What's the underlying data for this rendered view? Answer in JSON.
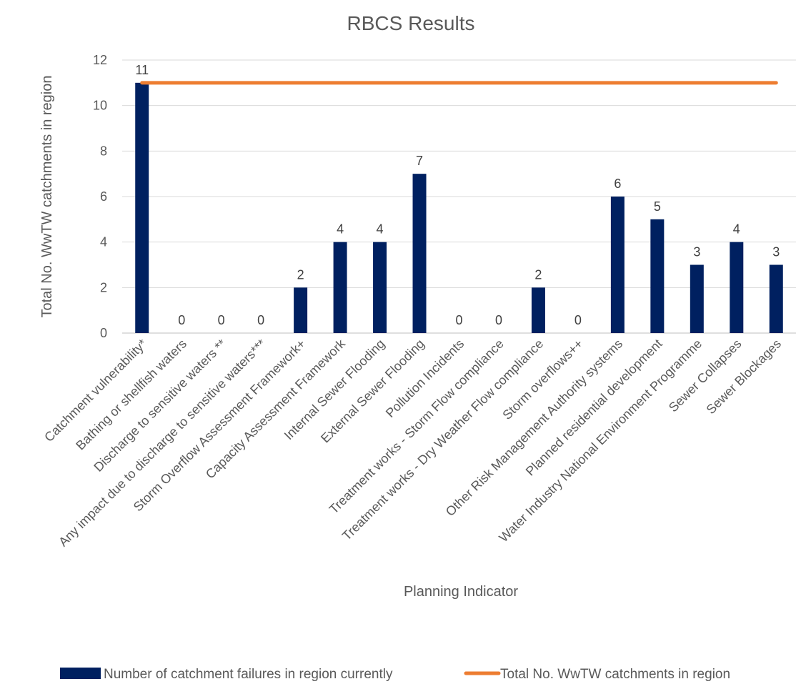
{
  "chart_data": {
    "type": "bar",
    "title": "RBCS Results",
    "xlabel": "Planning Indicator",
    "ylabel": "Total No. WwTW catchments in region",
    "ylim": [
      0,
      12
    ],
    "yticks": [
      0,
      2,
      4,
      6,
      8,
      10,
      12
    ],
    "grid": true,
    "legend_position": "bottom",
    "categories": [
      "Catchment vulnerability*",
      "Bathing or shellfish waters",
      "Discharge to sensitive waters **",
      "Any impact due to discharge to sensitive waters***",
      "Storm Overflow Assessment Framework+",
      "Capacity Assessment Framework",
      "Internal Sewer Flooding",
      "External Sewer Flooding",
      "Pollution Incidents",
      "Treatment works - Storm Flow compliance",
      "Treatment works - Dry Weather Flow compliance",
      "Storm overflows++",
      "Other Risk Management Authority systems",
      "Planned residential development",
      "Water Industry National Environment Programme",
      "Sewer Collapses",
      "Sewer Blockages"
    ],
    "series": [
      {
        "name": "Number of catchment failures in region currently",
        "type": "bar",
        "color": "#002060",
        "values": [
          11,
          0,
          0,
          0,
          2,
          4,
          4,
          7,
          0,
          0,
          2,
          0,
          6,
          5,
          3,
          4,
          3
        ]
      },
      {
        "name": "Total No. WwTW catchments in region",
        "type": "line",
        "color": "#ED7D31",
        "values": [
          11,
          11,
          11,
          11,
          11,
          11,
          11,
          11,
          11,
          11,
          11,
          11,
          11,
          11,
          11,
          11,
          11
        ]
      }
    ]
  }
}
